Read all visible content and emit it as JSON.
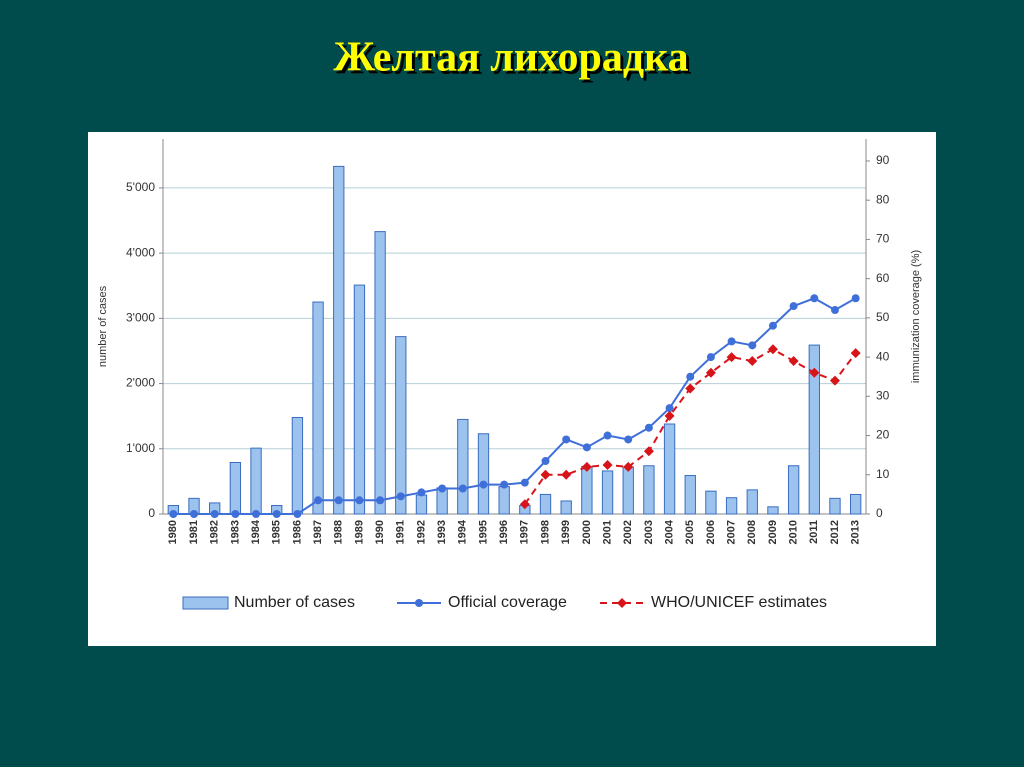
{
  "slide_title": "Желтая лихорадка",
  "chart_data": {
    "type": "bar-line",
    "categories": [
      "1980",
      "1981",
      "1982",
      "1983",
      "1984",
      "1985",
      "1986",
      "1987",
      "1988",
      "1989",
      "1990",
      "1991",
      "1992",
      "1993",
      "1994",
      "1995",
      "1996",
      "1997",
      "1998",
      "1999",
      "2000",
      "2001",
      "2002",
      "2003",
      "2004",
      "2005",
      "2006",
      "2007",
      "2008",
      "2009",
      "2010",
      "2011",
      "2012",
      "2013"
    ],
    "ylabel": "number of cases",
    "y2label": "immunization coverage (%)",
    "ylim": [
      0,
      5750
    ],
    "yticks": [
      0,
      {
        "value": 1000,
        "label": "1'000"
      },
      {
        "value": 2000,
        "label": "2'000"
      },
      {
        "value": 3000,
        "label": "3'000"
      },
      {
        "value": 4000,
        "label": "4'000"
      },
      {
        "value": 5000,
        "label": "5'000"
      }
    ],
    "y2lim": [
      0,
      95.6
    ],
    "y2ticks": [
      0,
      10,
      20,
      30,
      40,
      50,
      60,
      70,
      80,
      90
    ],
    "grid": true,
    "legend": "bottom",
    "series": [
      {
        "name": "Number of cases",
        "kind": "bar",
        "color": "#9cc3ee",
        "edge": "#3b6cc0",
        "values": [
          130,
          240,
          170,
          790,
          1010,
          130,
          1480,
          3250,
          5330,
          3510,
          4330,
          2720,
          290,
          400,
          1450,
          1230,
          420,
          130,
          300,
          200,
          730,
          660,
          720,
          740,
          1380,
          590,
          350,
          250,
          370,
          110,
          740,
          2590,
          240,
          300
        ]
      },
      {
        "name": "Official coverage",
        "kind": "line",
        "axis": "y2",
        "color": "#3f6fd8",
        "marker": "circle",
        "dashed": false,
        "values": [
          0,
          0,
          0,
          0,
          0,
          0,
          0,
          3.5,
          3.5,
          3.5,
          3.5,
          4.5,
          5.5,
          6.5,
          6.5,
          7.5,
          7.5,
          8,
          13.5,
          19,
          17,
          20,
          19,
          22,
          27,
          35,
          40,
          44,
          43,
          48,
          53,
          55,
          52,
          55
        ]
      },
      {
        "name": "WHO/UNICEF estimates",
        "kind": "line",
        "axis": "y2",
        "color": "#d8141b",
        "marker": "diamond",
        "dashed": true,
        "values": [
          null,
          null,
          null,
          null,
          null,
          null,
          null,
          null,
          null,
          null,
          null,
          null,
          null,
          null,
          null,
          null,
          null,
          2.5,
          10,
          10,
          12,
          12.5,
          12,
          16,
          25,
          32,
          36,
          40,
          39,
          42,
          39,
          36,
          34,
          41
        ]
      }
    ]
  }
}
